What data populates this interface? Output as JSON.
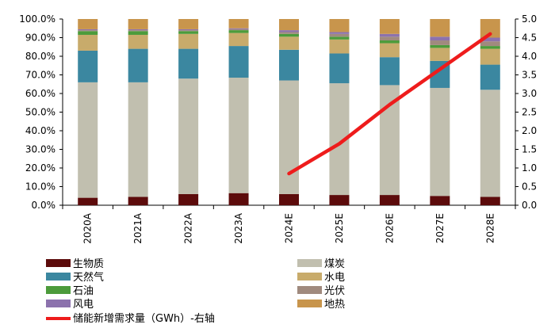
{
  "chart_data": {
    "type": "bar",
    "subtype": "stacked-percent-with-line",
    "categories": [
      "2020A",
      "2021A",
      "2022A",
      "2023A",
      "2024E",
      "2025E",
      "2026E",
      "2027E",
      "2028E"
    ],
    "series": [
      {
        "name": "生物质",
        "color": "#5c0b0b",
        "values": [
          4.0,
          4.5,
          6.0,
          6.5,
          6.0,
          5.5,
          5.5,
          5.0,
          4.5
        ]
      },
      {
        "name": "煤炭",
        "color": "#c1bfaf",
        "values": [
          62.0,
          61.5,
          62.0,
          62.0,
          61.0,
          60.0,
          59.0,
          58.0,
          57.5
        ]
      },
      {
        "name": "天然气",
        "color": "#3b87a0",
        "values": [
          17.0,
          18.0,
          16.0,
          17.0,
          16.5,
          16.0,
          15.0,
          14.5,
          13.5
        ]
      },
      {
        "name": "水电",
        "color": "#c8ab6b",
        "values": [
          8.5,
          7.5,
          8.0,
          7.0,
          7.0,
          7.5,
          7.5,
          7.0,
          8.5
        ]
      },
      {
        "name": "石油",
        "color": "#4c9b3b",
        "values": [
          2.0,
          2.0,
          1.5,
          1.5,
          1.5,
          1.5,
          1.5,
          1.5,
          1.5
        ]
      },
      {
        "name": "光伏",
        "color": "#a08a7e",
        "values": [
          0.5,
          0.5,
          0.5,
          0.5,
          1.0,
          1.5,
          2.0,
          2.5,
          2.5
        ]
      },
      {
        "name": "风电",
        "color": "#8c72ad",
        "values": [
          0.5,
          0.5,
          0.5,
          0.5,
          1.0,
          1.0,
          1.5,
          2.0,
          2.0
        ]
      },
      {
        "name": "地热",
        "color": "#c8954c",
        "values": [
          5.5,
          5.5,
          5.5,
          5.0,
          6.0,
          7.0,
          8.0,
          9.5,
          10.0
        ]
      }
    ],
    "line": {
      "name": "储能新增需求量（GWh）-右轴",
      "color": "#ee1c1c",
      "axis": "right",
      "x": [
        "2024E",
        "2025E",
        "2026E",
        "2027E",
        "2028E"
      ],
      "values": [
        0.85,
        1.65,
        2.7,
        3.65,
        4.6
      ]
    },
    "y_left": {
      "min": 0,
      "max": 100,
      "ticks": [
        "0.0%",
        "10.0%",
        "20.0%",
        "30.0%",
        "40.0%",
        "50.0%",
        "60.0%",
        "70.0%",
        "80.0%",
        "90.0%",
        "100.0%"
      ]
    },
    "y_right": {
      "min": 0,
      "max": 5,
      "ticks": [
        "0.0",
        "0.5",
        "1.0",
        "1.5",
        "2.0",
        "2.5",
        "3.0",
        "3.5",
        "4.0",
        "4.5",
        "5.0"
      ]
    },
    "legend": {
      "placement": "bottom",
      "left_column": [
        "生物质",
        "天然气",
        "石油",
        "风电"
      ],
      "right_column": [
        "煤炭",
        "水电",
        "光伏",
        "地热"
      ],
      "line_entry": "储能新增需求量（GWh）-右轴"
    }
  }
}
